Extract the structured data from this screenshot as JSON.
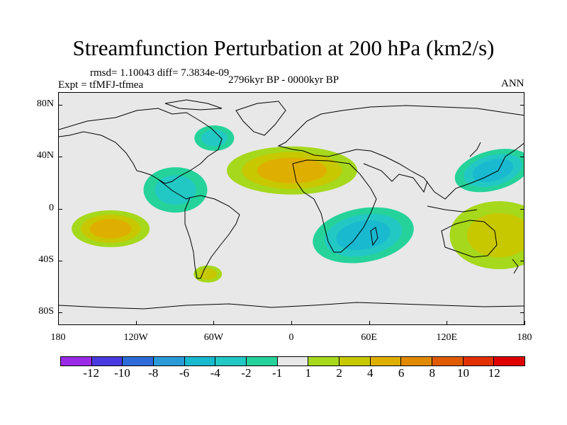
{
  "header": {
    "title": "Streamfunction Perturbation at 200 hPa (km2/s)",
    "stats": "rmsd= 1.10043 diff= 7.3834e-09",
    "expt": "Expt = tfMFJ-tfmea",
    "period": "2796kyr BP - 0000kyr BP",
    "season": "ANN"
  },
  "map": {
    "lat_labels": [
      "80N",
      "40N",
      "0",
      "40S",
      "80S"
    ],
    "lon_labels": [
      "180",
      "120W",
      "60W",
      "0",
      "60E",
      "120E",
      "180"
    ]
  },
  "colorbar": {
    "labels": [
      "-12",
      "-10",
      "-8",
      "-6",
      "-4",
      "-2",
      "-1",
      "1",
      "2",
      "4",
      "6",
      "8",
      "10",
      "12"
    ],
    "colors": [
      "#9b2be6",
      "#4a3be0",
      "#2f6cd9",
      "#2a9bd8",
      "#19b9d0",
      "#22c8c4",
      "#25d39a",
      "#e8e8e8",
      "#a6d81c",
      "#c8c800",
      "#dfaf00",
      "#e18a00",
      "#e05a00",
      "#e23000",
      "#e00000"
    ]
  },
  "chart_data": {
    "type": "contour-map",
    "projection": "cylindrical equidistant",
    "variable": "200 hPa streamfunction perturbation",
    "units": "km2/s",
    "levels": [
      -12,
      -10,
      -8,
      -6,
      -4,
      -2,
      -1,
      1,
      2,
      4,
      6,
      8,
      10,
      12
    ],
    "lon_range": [
      -180,
      180
    ],
    "lat_range": [
      -90,
      90
    ],
    "features": [
      {
        "name": "North Africa positive anomaly",
        "sign": "positive",
        "peak_level": 4,
        "lon": 0,
        "lat": 30
      },
      {
        "name": "Southern Africa / Indian Ocean negative anomaly",
        "sign": "negative",
        "peak_level": -4,
        "lon": 55,
        "lat": -20
      },
      {
        "name": "NW Pacific negative anomaly",
        "sign": "negative",
        "peak_level": -4,
        "lon": 155,
        "lat": 30
      },
      {
        "name": "Australia / SW Pacific positive anomaly",
        "sign": "positive",
        "peak_level": 2,
        "lon": 160,
        "lat": -20
      },
      {
        "name": "South Pacific positive anomaly",
        "sign": "positive",
        "peak_level": 4,
        "lon": -140,
        "lat": -15
      },
      {
        "name": "Caribbean / tropical Atlantic negative anomaly",
        "sign": "negative",
        "peak_level": -2,
        "lon": -90,
        "lat": 15
      },
      {
        "name": "North Atlantic negative anomaly",
        "sign": "negative",
        "peak_level": -2,
        "lon": -60,
        "lat": 55
      },
      {
        "name": "Southern South America positive anomaly",
        "sign": "positive",
        "peak_level": 2,
        "lon": -65,
        "lat": -50
      }
    ]
  }
}
